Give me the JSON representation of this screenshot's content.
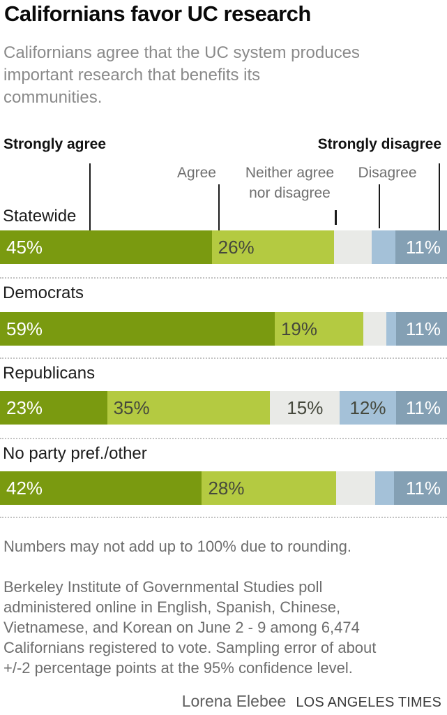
{
  "title": "Californians favor UC research",
  "subtitle_lines": [
    "Californians agree that the UC system produces",
    "important research that benefits its",
    "communities."
  ],
  "annotations": {
    "strongly_agree": "Strongly agree",
    "strongly_disagree": "Strongly disagree",
    "agree": "Agree",
    "neither_lines": [
      "Neither agree",
      "nor disagree"
    ],
    "disagree": "Disagree"
  },
  "chart_data": {
    "type": "bar",
    "stacked": true,
    "orientation": "horizontal",
    "unit": "percent",
    "legend_position": "top",
    "series_labels": [
      "Strongly agree",
      "Agree",
      "Neither agree nor disagree",
      "Disagree",
      "Strongly disagree"
    ],
    "series_keys": [
      "strongly-agree",
      "agree",
      "neither",
      "disagree",
      "strongly-disagree"
    ],
    "series_colors": [
      "#7a9a10",
      "#b4ca41",
      "#e9eae7",
      "#a4c1d8",
      "#84a0b4"
    ],
    "categories": [
      "Statewide",
      "Democrats",
      "Republicans",
      "No party pref./other"
    ],
    "rows": [
      {
        "category": "Statewide",
        "values": [
          45,
          26,
          8,
          5,
          11
        ],
        "labels": [
          "45%",
          "26%",
          "",
          "",
          "11%"
        ]
      },
      {
        "category": "Democrats",
        "values": [
          59,
          19,
          5,
          2,
          11
        ],
        "labels": [
          "59%",
          "19%",
          "",
          "",
          "11%"
        ]
      },
      {
        "category": "Republicans",
        "values": [
          23,
          35,
          15,
          12,
          11
        ],
        "labels": [
          "23%",
          "35%",
          "15%",
          "12%",
          "11%"
        ]
      },
      {
        "category": "No party pref./other",
        "values": [
          42,
          28,
          8,
          4,
          11
        ],
        "labels": [
          "42%",
          "28%",
          "",
          "",
          "11%"
        ]
      }
    ]
  },
  "footnote": "Numbers may not add up to 100% due to rounding.",
  "source_lines": [
    "Berkeley Institute of Governmental Studies poll",
    "administered online in English, Spanish, Chinese,",
    "Vietnamese, and Korean on June 2 - 9 among 6,474",
    "Californians registered to vote. Sampling error of about",
    "+/-2 percentage points at the 95% confidence level."
  ],
  "credit": {
    "author": "Lorena Elebee",
    "publication": "LOS ANGELES TIMES"
  }
}
